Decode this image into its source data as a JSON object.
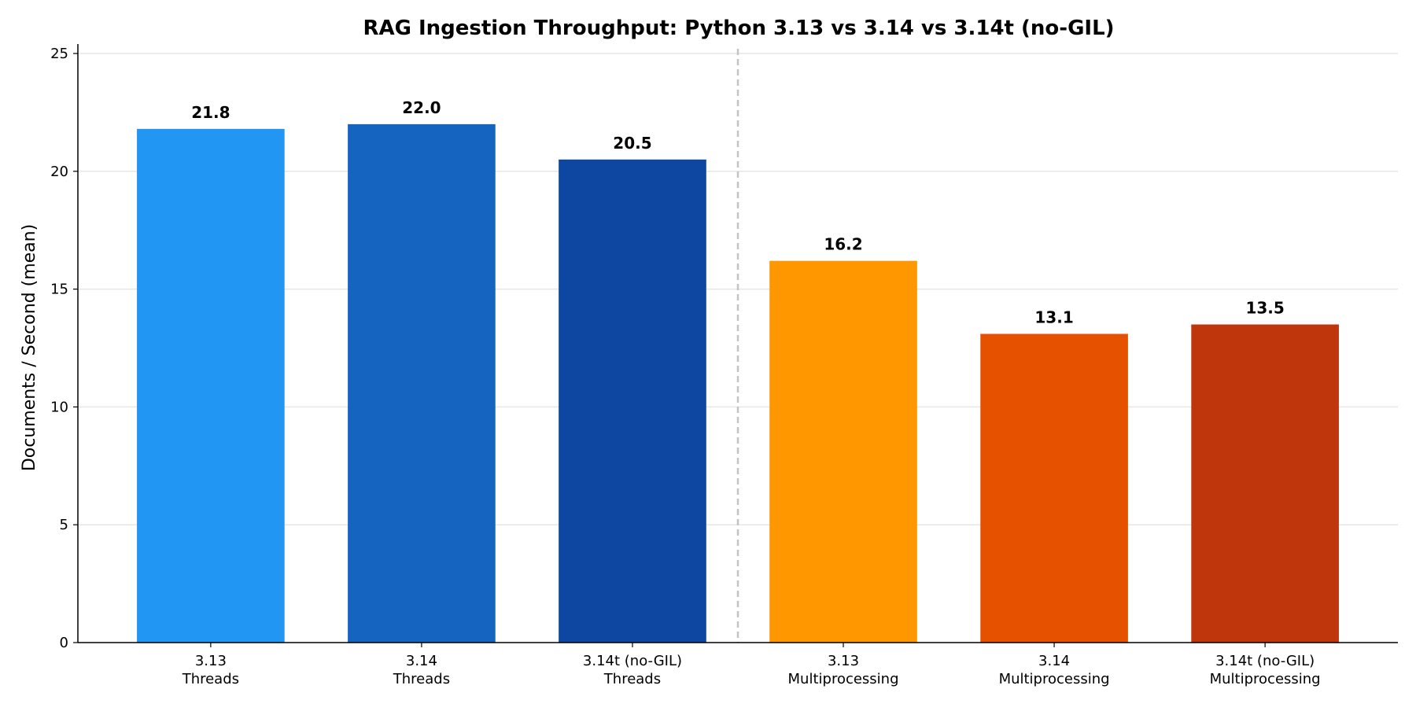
{
  "chart_data": {
    "type": "bar",
    "title": "RAG Ingestion Throughput: Python 3.13 vs 3.14 vs 3.14t (no-GIL)",
    "xlabel": "",
    "ylabel": "Documents / Second (mean)",
    "ylim": [
      0,
      25
    ],
    "yticks": [
      0,
      5,
      10,
      15,
      20,
      25
    ],
    "grid": "y",
    "categories": [
      [
        "3.13",
        "Threads"
      ],
      [
        "3.14",
        "Threads"
      ],
      [
        "3.14t (no-GIL)",
        "Threads"
      ],
      [
        "3.13",
        "Multiprocessing"
      ],
      [
        "3.14",
        "Multiprocessing"
      ],
      [
        "3.14t (no-GIL)",
        "Multiprocessing"
      ]
    ],
    "values": [
      21.8,
      22.0,
      20.5,
      16.2,
      13.1,
      13.5
    ],
    "data_labels": [
      "21.8",
      "22.0",
      "20.5",
      "16.2",
      "13.1",
      "13.5"
    ],
    "colors": [
      "#2196F3",
      "#1565C0",
      "#0D47A1",
      "#FF9800",
      "#E65100",
      "#BF360C"
    ],
    "divider": "dashed vertical line between Threads and Multiprocessing groups"
  }
}
